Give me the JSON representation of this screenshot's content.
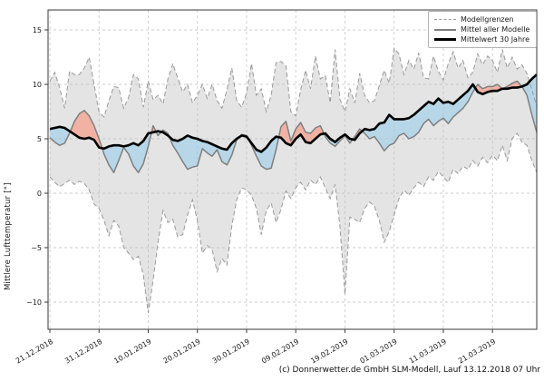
{
  "caption": "(c) Donnerwetter.de GmbH SLM-Modell, Lauf 13.12.2018 07 Uhr",
  "chart_data": {
    "type": "line",
    "title": "",
    "ylabel": "Mittlere Lufttemperatur [°]",
    "legend": [
      "Modellgrenzen",
      "Mittel aller Modelle",
      "Mittelwert 30 Jahre"
    ],
    "legend_position": "top-right",
    "grid": true,
    "ylim": [
      -12.5,
      16.8333
    ],
    "y_ticks": [
      15,
      10,
      5,
      0,
      -5,
      -10
    ],
    "x_tick_days": [
      0,
      10,
      20,
      30,
      40,
      50,
      60,
      70,
      80,
      90
    ],
    "x_tick_labels": [
      "21.12.2018",
      "31.12.2018",
      "10.01.2019",
      "20.01.2019",
      "30.01.2019",
      "09.02.2019",
      "19.02.2019",
      "01.03.2019",
      "11.03.2019",
      "21.03.2019"
    ],
    "days_total": 100,
    "colors": {
      "band_fill": "#e4e4e4",
      "boundary_line": "#999999",
      "mean_line": "#7f7f7f",
      "mean30_line": "#000000",
      "warm_anomaly_fill": "#f1b2a4",
      "cold_anomaly_fill": "#b7d7e8",
      "grid_line": "#bcbcbc"
    },
    "series": [
      {
        "name": "Modellgrenzen oben",
        "values": [
          10.3,
          11.1,
          9.7,
          7.8,
          11.2,
          10.9,
          10.9,
          11.5,
          12.5,
          10.0,
          7.5,
          7.0,
          8.5,
          9.8,
          9.7,
          7.8,
          8.8,
          10.9,
          10.5,
          7.9,
          10.3,
          8.6,
          9.0,
          8.2,
          10.5,
          11.9,
          10.6,
          9.3,
          10.0,
          8.3,
          9.0,
          10.0,
          8.7,
          10.0,
          8.5,
          7.8,
          9.5,
          11.5,
          8.5,
          7.9,
          9.2,
          11.9,
          9.0,
          9.6,
          7.5,
          9.0,
          12.0,
          12.1,
          11.7,
          7.5,
          7.1,
          9.5,
          11.3,
          9.6,
          12.6,
          10.5,
          10.8,
          8.3,
          13.2,
          8.6,
          7.5,
          9.6,
          8.3,
          11.0,
          9.0,
          8.3,
          8.5,
          9.9,
          11.3,
          10.1,
          13.3,
          12.8,
          10.9,
          12.2,
          11.4,
          12.9,
          10.6,
          10.5,
          12.6,
          11.2,
          10.4,
          11.9,
          13.0,
          11.5,
          12.2,
          10.6,
          11.1,
          12.8,
          11.8,
          12.6,
          12.2,
          11.1,
          13.2,
          11.5,
          12.5,
          11.4,
          11.8,
          11.0,
          9.5,
          8.0
        ]
      },
      {
        "name": "Modellgrenzen unten",
        "values": [
          1.5,
          1.0,
          0.6,
          0.9,
          1.2,
          0.8,
          1.1,
          0.9,
          0.3,
          -1.0,
          -1.4,
          -2.5,
          -3.9,
          -2.5,
          -3.0,
          -5.0,
          -5.5,
          -6.1,
          -5.8,
          -7.5,
          -11.0,
          -8.0,
          -4.5,
          -1.6,
          -2.7,
          -2.4,
          -4.0,
          -3.8,
          -2.0,
          -0.6,
          -2.5,
          -5.5,
          -4.8,
          -5.2,
          -7.2,
          -6.0,
          -6.6,
          -3.0,
          -0.6,
          0.5,
          0.3,
          -0.2,
          -1.4,
          -3.8,
          -1.6,
          -0.9,
          -2.7,
          -1.5,
          0.2,
          -0.5,
          0.5,
          1.0,
          0.3,
          1.2,
          0.8,
          1.5,
          0.5,
          -0.5,
          0.8,
          -3.1,
          -9.3,
          -2.2,
          -2.4,
          -2.7,
          -1.4,
          -0.8,
          -1.2,
          -2.5,
          -4.5,
          -3.5,
          -2.0,
          -0.5,
          0.3,
          -0.2,
          0.5,
          1.0,
          0.6,
          1.5,
          1.2,
          2.0,
          1.5,
          1.0,
          2.2,
          1.8,
          2.5,
          2.2,
          3.0,
          2.5,
          3.3,
          2.8,
          3.5,
          3.0,
          4.4,
          3.0,
          5.0,
          5.5,
          4.7,
          4.4,
          3.0,
          1.9
        ]
      },
      {
        "name": "Mittel aller Modelle",
        "values": [
          5.1,
          4.7,
          4.4,
          4.6,
          5.5,
          6.6,
          7.3,
          7.6,
          7.1,
          6.2,
          5.0,
          3.6,
          2.6,
          1.9,
          3.0,
          4.2,
          3.6,
          2.5,
          1.9,
          2.7,
          4.3,
          6.2,
          5.3,
          5.8,
          5.5,
          4.4,
          3.7,
          2.9,
          2.2,
          2.4,
          2.5,
          4.1,
          3.7,
          3.4,
          4.0,
          2.9,
          2.6,
          3.5,
          4.9,
          5.4,
          5.3,
          4.4,
          3.4,
          2.5,
          2.2,
          2.3,
          4.0,
          6.1,
          6.6,
          4.8,
          5.9,
          6.5,
          5.6,
          5.5,
          6.0,
          6.2,
          5.2,
          4.6,
          4.3,
          4.8,
          5.3,
          4.6,
          5.2,
          5.9,
          5.5,
          5.0,
          5.2,
          4.6,
          3.9,
          4.4,
          4.6,
          5.3,
          5.5,
          5.0,
          5.2,
          5.6,
          6.4,
          6.8,
          6.2,
          6.6,
          6.9,
          6.4,
          7.0,
          7.4,
          7.8,
          8.4,
          9.3,
          10.0,
          9.6,
          9.8,
          9.8,
          10.0,
          9.6,
          9.8,
          10.1,
          10.3,
          9.8,
          9.0,
          7.2,
          5.6
        ]
      },
      {
        "name": "Mittelwert 30 Jahre",
        "values": [
          5.9,
          6.0,
          6.1,
          6.0,
          5.7,
          5.4,
          5.1,
          5.0,
          5.1,
          4.9,
          4.2,
          4.1,
          4.3,
          4.4,
          4.4,
          4.3,
          4.4,
          4.6,
          4.4,
          4.8,
          5.5,
          5.6,
          5.7,
          5.6,
          5.3,
          4.9,
          4.8,
          5.0,
          5.3,
          5.1,
          5.0,
          4.8,
          4.7,
          4.5,
          4.3,
          4.1,
          4.0,
          4.6,
          5.0,
          5.3,
          5.2,
          4.6,
          4.0,
          3.8,
          4.2,
          4.8,
          5.2,
          5.1,
          4.6,
          4.4,
          5.0,
          5.4,
          4.7,
          4.6,
          5.0,
          5.4,
          5.5,
          5.0,
          4.7,
          5.1,
          5.4,
          5.0,
          4.9,
          5.5,
          5.9,
          5.8,
          5.9,
          6.4,
          6.5,
          7.2,
          6.8,
          6.8,
          6.8,
          6.9,
          7.2,
          7.6,
          8.0,
          8.4,
          8.2,
          8.7,
          8.3,
          8.4,
          8.2,
          8.6,
          9.0,
          9.4,
          10.0,
          9.3,
          9.1,
          9.3,
          9.4,
          9.4,
          9.6,
          9.6,
          9.7,
          9.7,
          9.8,
          10.0,
          10.5,
          10.9
        ]
      }
    ]
  }
}
